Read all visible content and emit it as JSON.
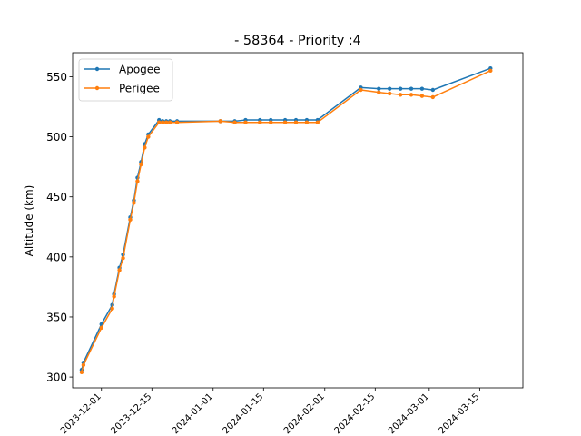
{
  "chart_data": {
    "type": "line",
    "title": "- 58364 - Priority :4",
    "xlabel": "",
    "ylabel": "Altitude (km)",
    "xlim": [
      "2023-11-23",
      "2024-03-27"
    ],
    "ylim": [
      291,
      570
    ],
    "x_ticks": [
      "2023-12-01",
      "2023-12-15",
      "2024-01-01",
      "2024-01-15",
      "2024-02-01",
      "2024-02-15",
      "2024-03-01",
      "2024-03-15"
    ],
    "y_ticks": [
      300,
      350,
      400,
      450,
      500,
      550
    ],
    "grid": false,
    "legend_position": "top-left",
    "colors": {
      "apogee": "#1f77b4",
      "perigee": "#ff7f0e"
    },
    "series": [
      {
        "name": "Apogee",
        "color": "#1f77b4",
        "points": [
          [
            "2023-11-25T12:00",
            306
          ],
          [
            "2023-11-26",
            312
          ],
          [
            "2023-12-01",
            344
          ],
          [
            "2023-12-04",
            360
          ],
          [
            "2023-12-04T12:00",
            369
          ],
          [
            "2023-12-06",
            391
          ],
          [
            "2023-12-07",
            402
          ],
          [
            "2023-12-09",
            433
          ],
          [
            "2023-12-10",
            447
          ],
          [
            "2023-12-11",
            466
          ],
          [
            "2023-12-12",
            479
          ],
          [
            "2023-12-13",
            494
          ],
          [
            "2023-12-14",
            502
          ],
          [
            "2023-12-17",
            514
          ],
          [
            "2023-12-18",
            513
          ],
          [
            "2023-12-19",
            513
          ],
          [
            "2023-12-20",
            513
          ],
          [
            "2023-12-22",
            513
          ],
          [
            "2024-01-03",
            513
          ],
          [
            "2024-01-07",
            513
          ],
          [
            "2024-01-10",
            514
          ],
          [
            "2024-01-14",
            514
          ],
          [
            "2024-01-17",
            514
          ],
          [
            "2024-01-21",
            514
          ],
          [
            "2024-01-24",
            514
          ],
          [
            "2024-01-27",
            514
          ],
          [
            "2024-01-30",
            514
          ],
          [
            "2024-02-11",
            541
          ],
          [
            "2024-02-16",
            540
          ],
          [
            "2024-02-19",
            540
          ],
          [
            "2024-02-22",
            540
          ],
          [
            "2024-02-25",
            540
          ],
          [
            "2024-02-28",
            540
          ],
          [
            "2024-03-02",
            539
          ],
          [
            "2024-03-18",
            557
          ]
        ]
      },
      {
        "name": "Perigee",
        "color": "#ff7f0e",
        "points": [
          [
            "2023-11-25T12:00",
            304
          ],
          [
            "2023-11-26",
            310
          ],
          [
            "2023-12-01",
            341
          ],
          [
            "2023-12-04",
            357
          ],
          [
            "2023-12-04T12:00",
            367
          ],
          [
            "2023-12-06",
            389
          ],
          [
            "2023-12-07",
            399
          ],
          [
            "2023-12-09",
            431
          ],
          [
            "2023-12-10",
            445
          ],
          [
            "2023-12-11",
            463
          ],
          [
            "2023-12-12",
            477
          ],
          [
            "2023-12-13",
            491
          ],
          [
            "2023-12-14",
            500
          ],
          [
            "2023-12-17",
            512
          ],
          [
            "2023-12-18",
            512
          ],
          [
            "2023-12-19",
            512
          ],
          [
            "2023-12-20",
            512
          ],
          [
            "2023-12-22",
            512
          ],
          [
            "2024-01-03",
            513
          ],
          [
            "2024-01-07",
            512
          ],
          [
            "2024-01-10",
            512
          ],
          [
            "2024-01-14",
            512
          ],
          [
            "2024-01-17",
            512
          ],
          [
            "2024-01-21",
            512
          ],
          [
            "2024-01-24",
            512
          ],
          [
            "2024-01-27",
            512
          ],
          [
            "2024-01-30",
            512
          ],
          [
            "2024-02-11",
            539
          ],
          [
            "2024-02-16",
            537
          ],
          [
            "2024-02-19",
            536
          ],
          [
            "2024-02-22",
            535
          ],
          [
            "2024-02-25",
            535
          ],
          [
            "2024-02-28",
            534
          ],
          [
            "2024-03-02",
            533
          ],
          [
            "2024-03-18",
            555
          ]
        ]
      }
    ]
  }
}
